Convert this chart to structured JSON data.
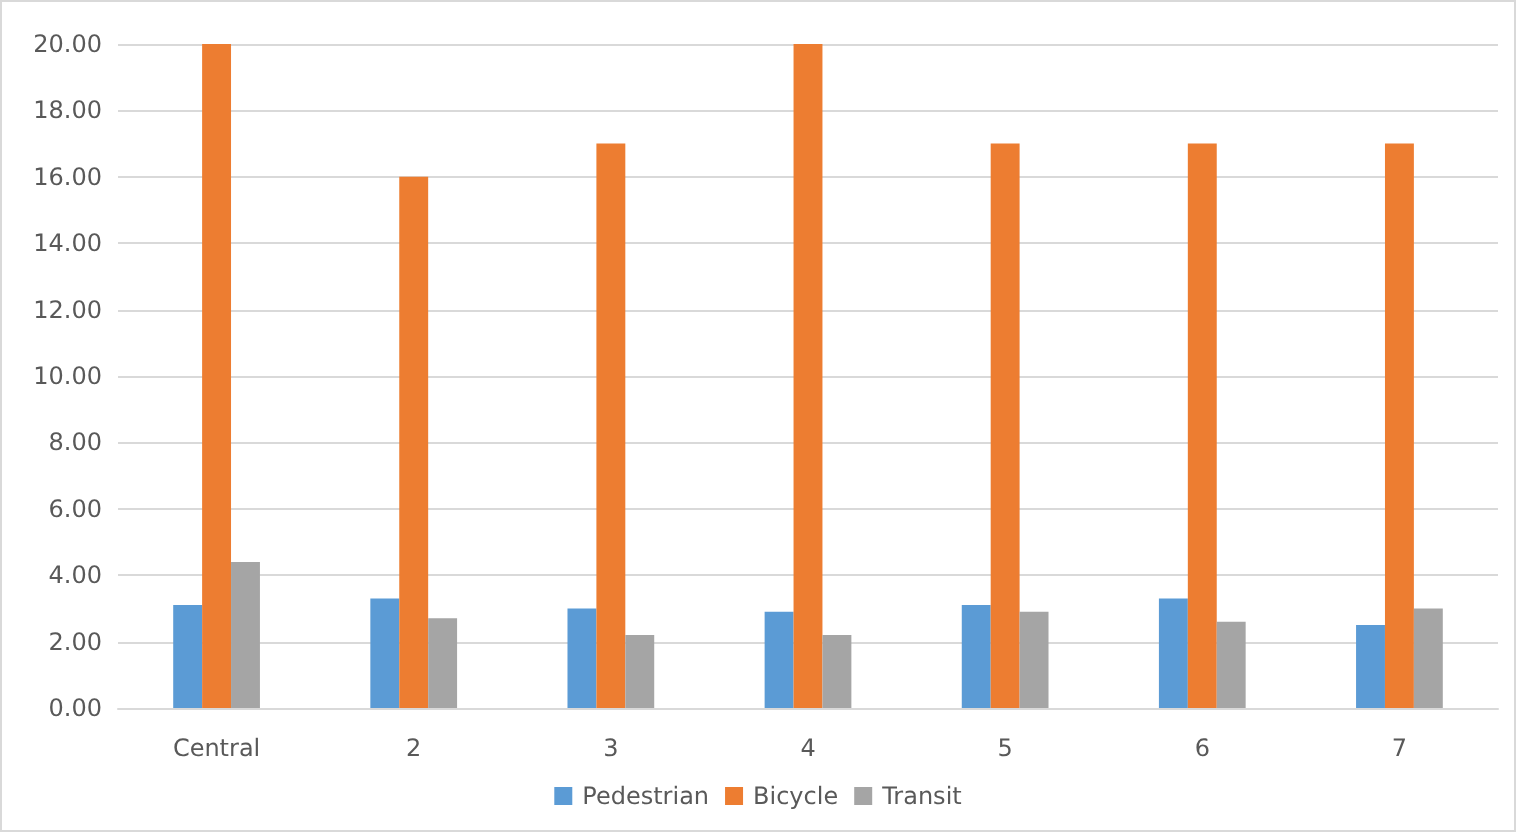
{
  "chart_data": {
    "type": "bar",
    "categories": [
      "Central",
      "2",
      "3",
      "4",
      "5",
      "6",
      "7"
    ],
    "series": [
      {
        "name": "Pedestrian",
        "color": "#5b9bd5",
        "values": [
          3.1,
          3.3,
          3.0,
          2.9,
          3.1,
          3.3,
          2.5
        ]
      },
      {
        "name": "Bicycle",
        "color": "#ed7d31",
        "values": [
          20,
          16,
          17,
          20,
          17,
          17,
          17
        ]
      },
      {
        "name": "Transit",
        "color": "#a5a5a5",
        "values": [
          4.4,
          2.7,
          2.2,
          2.2,
          2.9,
          2.6,
          3.0
        ]
      }
    ],
    "ylim": [
      0,
      20
    ],
    "yticks": [
      {
        "value": 0,
        "label": "0.00"
      },
      {
        "value": 2,
        "label": "2.00"
      },
      {
        "value": 4,
        "label": "4.00"
      },
      {
        "value": 6,
        "label": "6.00"
      },
      {
        "value": 8,
        "label": "8.00"
      },
      {
        "value": 10,
        "label": "10.00"
      },
      {
        "value": 12,
        "label": "12.00"
      },
      {
        "value": 14,
        "label": "14.00"
      },
      {
        "value": 16,
        "label": "16.00"
      },
      {
        "value": 18,
        "label": "18.00"
      },
      {
        "value": 20,
        "label": "20.00"
      }
    ],
    "grid": "y",
    "legend": "bottom"
  }
}
